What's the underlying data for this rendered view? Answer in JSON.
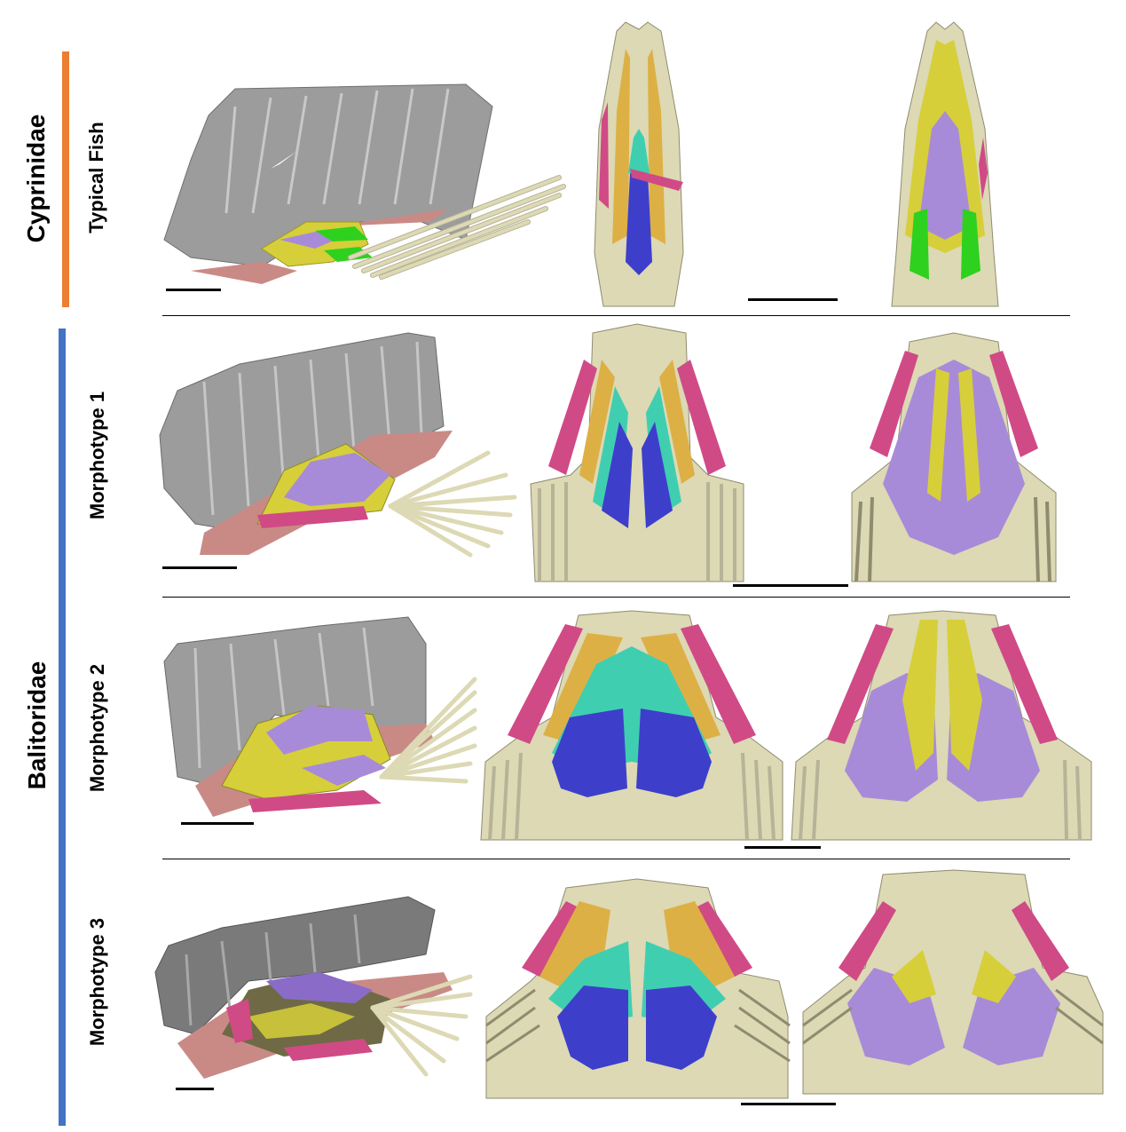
{
  "families": [
    {
      "name": "Cyprinidae",
      "color": "#ED7D31"
    },
    {
      "name": "Balitoridae",
      "color": "#4472C4"
    }
  ],
  "rows": [
    {
      "label": "Typical Fish"
    },
    {
      "label": "Morphotype 1"
    },
    {
      "label": "Morphotype 2"
    },
    {
      "label": "Morphotype 3"
    }
  ],
  "colors": {
    "bone": "#DCD9B4",
    "bone_dark": "#A9A58A",
    "skeleton_gray": "#9C9C9C",
    "pink_red": "#D04A86",
    "salmon": "#C98A86",
    "gold": "#DDB045",
    "yellow": "#D6CF3A",
    "teal": "#3FCFB0",
    "blue": "#3D3FCB",
    "lavender": "#A88BD8",
    "green": "#2ED11E"
  }
}
